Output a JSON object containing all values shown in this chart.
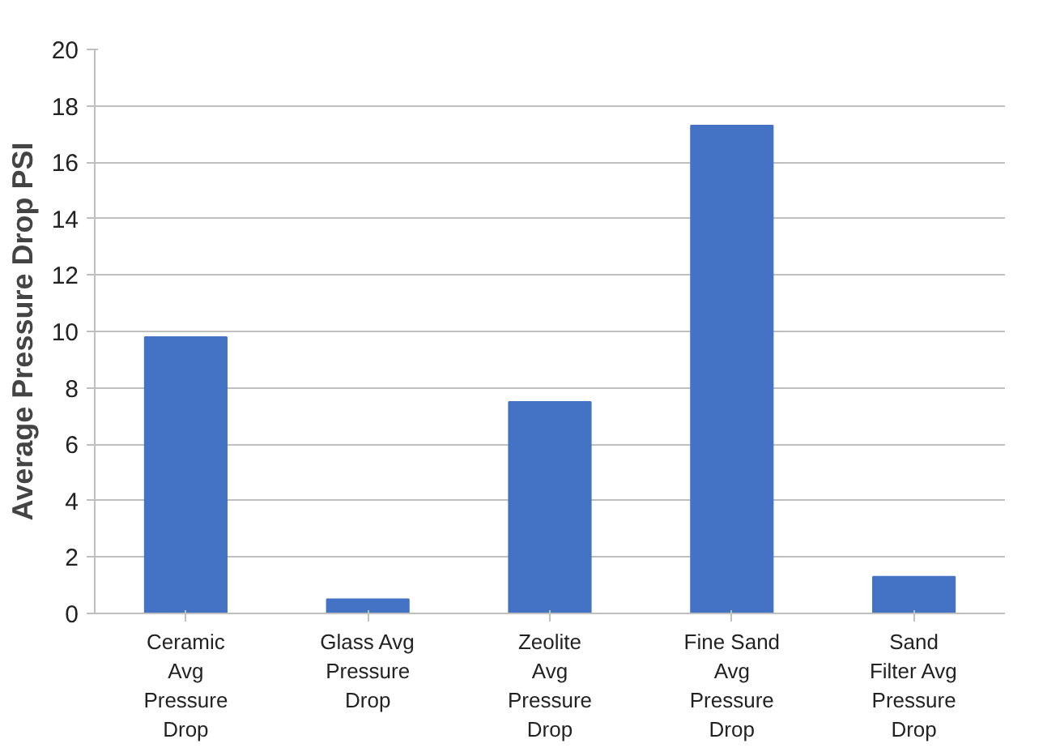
{
  "chart_data": {
    "type": "bar",
    "ylabel": "Average Pressure Drop PSI",
    "categories": [
      "Ceramic Avg Pressure Drop",
      "Glass Avg Pressure Drop",
      "Zeolite Avg Pressure Drop",
      "Fine Sand Avg Pressure Drop",
      "Sand Filter Avg Pressure Drop"
    ],
    "values": [
      9.8,
      0.5,
      7.5,
      17.3,
      1.3
    ],
    "color": "#4472c4",
    "ylim": [
      0,
      20
    ],
    "yticks": [
      0,
      2,
      4,
      6,
      8,
      10,
      12,
      14,
      16,
      18,
      20
    ],
    "grid": "y"
  }
}
